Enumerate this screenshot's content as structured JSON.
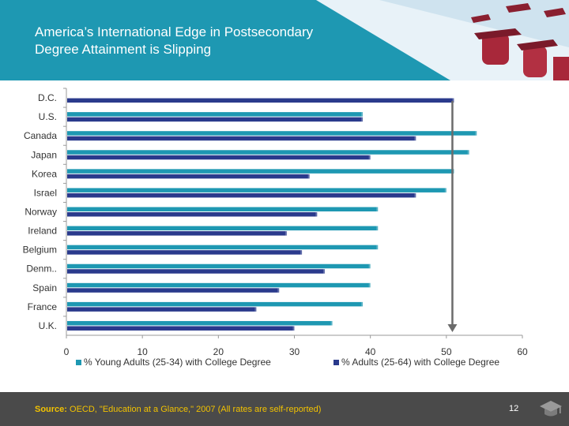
{
  "slide": {
    "title_line1": "America’s International Edge in Postsecondary",
    "title_line2": "Degree Attainment is Slipping",
    "source_label": "Source:",
    "source_text": " OECD, \"Education at a Glance,\" 2007 (All rates are self-reported)",
    "page_number": "12",
    "colors": {
      "header_teal": "#1e98b2",
      "footer_gray": "#4a4a4a",
      "source_yellow": "#f2c200"
    },
    "icons": [
      "graduation-cap-icon"
    ]
  },
  "chart_data": {
    "type": "bar",
    "orientation": "horizontal",
    "categories": [
      "D.C.",
      "U.S.",
      "Canada",
      "Japan",
      "Korea",
      "Israel",
      "Norway",
      "Ireland",
      "Belgium",
      "Denm..",
      "Spain",
      "France",
      "U.K."
    ],
    "series": [
      {
        "name": "% Young Adults (25-34) with College Degree",
        "color": "#1e98b2",
        "values": [
          null,
          39,
          54,
          53,
          51,
          50,
          41,
          41,
          41,
          40,
          40,
          39,
          35
        ]
      },
      {
        "name": "% Adults (25-64) with College Degree",
        "color": "#2a3a8c",
        "values": [
          51,
          39,
          46,
          40,
          32,
          46,
          33,
          29,
          31,
          34,
          28,
          25,
          30
        ]
      }
    ],
    "xlim": [
      0,
      60
    ],
    "xticks": [
      0,
      10,
      20,
      30,
      40,
      50,
      60
    ],
    "grid": false,
    "legend_position": "bottom",
    "annotation": {
      "type": "arrow-down",
      "x": 51,
      "from_category": "D.C.",
      "to_category": "U.K."
    }
  }
}
